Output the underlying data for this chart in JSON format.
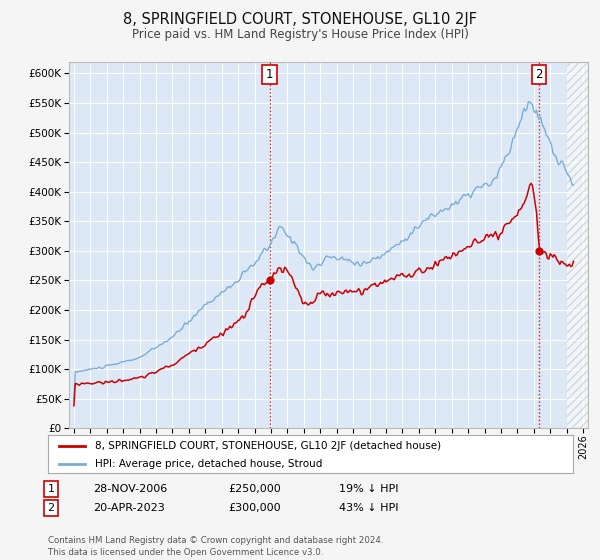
{
  "title": "8, SPRINGFIELD COURT, STONEHOUSE, GL10 2JF",
  "subtitle": "Price paid vs. HM Land Registry's House Price Index (HPI)",
  "legend_line1": "8, SPRINGFIELD COURT, STONEHOUSE, GL10 2JF (detached house)",
  "legend_line2": "HPI: Average price, detached house, Stroud",
  "annotation1_date": "28-NOV-2006",
  "annotation1_price": "£250,000",
  "annotation1_hpi": "19% ↓ HPI",
  "annotation2_date": "20-APR-2023",
  "annotation2_price": "£300,000",
  "annotation2_hpi": "43% ↓ HPI",
  "sale1_year": 2006.91,
  "sale2_year": 2023.3,
  "sale1_price": 250000,
  "sale2_price": 300000,
  "property_color": "#cc0000",
  "hpi_color": "#7aaed4",
  "background_color": "#f5f5f5",
  "plot_bg_color": "#dce8f5",
  "grid_color": "#ffffff",
  "ylim": [
    0,
    620000
  ],
  "xlim_start": 1994.7,
  "xlim_end": 2026.3,
  "footer": "Contains HM Land Registry data © Crown copyright and database right 2024.\nThis data is licensed under the Open Government Licence v3.0."
}
